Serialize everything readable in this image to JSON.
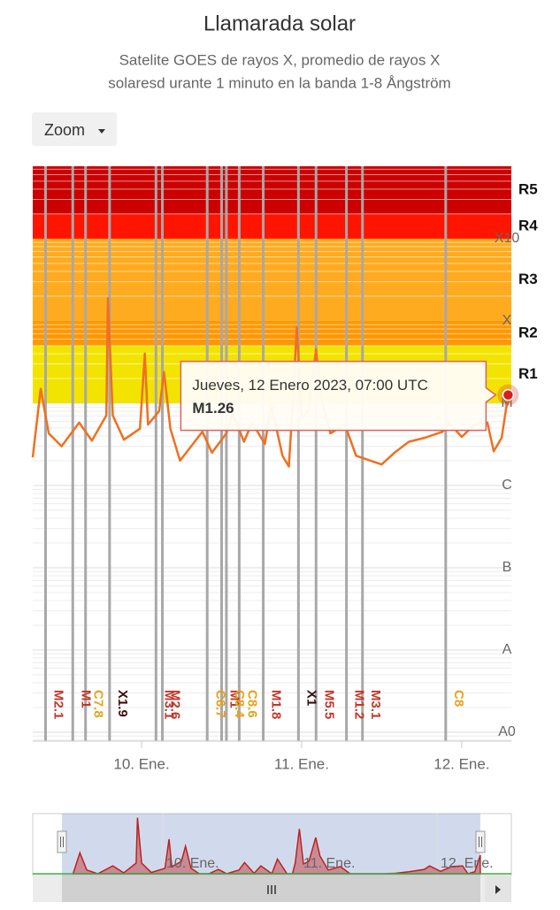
{
  "chart_data": {
    "type": "line",
    "title": "Llamarada solar",
    "subtitle": [
      "Satelite GOES de rayos X, promedio de rayos X",
      "solaresd urante 1 minuto en la banda 1-8 Ångström"
    ],
    "zoom_button": "Zoom",
    "log_scale": true,
    "grid": true,
    "color": "#f07020",
    "xlim": [
      9.32,
      12.31
    ],
    "xticks": [
      {
        "value": 10,
        "label": "10. Ene."
      },
      {
        "value": 11,
        "label": "11. Ene."
      },
      {
        "value": 12,
        "label": "12. Ene."
      }
    ],
    "ylim": [
      7.8e-10,
      0.0076
    ],
    "yticks": [
      {
        "value": 1e-09,
        "label": "A0"
      },
      {
        "value": 1e-08,
        "label": "A"
      },
      {
        "value": 1e-07,
        "label": "B"
      },
      {
        "value": 1e-06,
        "label": "C"
      },
      {
        "value": 1e-05,
        "label": "M"
      },
      {
        "value": 0.0001,
        "label": "X"
      },
      {
        "value": 0.001,
        "label": "X10"
      }
    ],
    "bands": [
      {
        "name": "R1",
        "from": 1e-05,
        "to": 5e-05,
        "color": "#f2e400"
      },
      {
        "name": "R2",
        "from": 5e-05,
        "to": 0.0001,
        "color": "#ff9800"
      },
      {
        "name": "R3",
        "from": 0.0001,
        "to": 0.001,
        "color": "#ffab1f"
      },
      {
        "name": "R4",
        "from": 0.001,
        "to": 0.002,
        "color": "#ff1400"
      },
      {
        "name": "R5",
        "from": 0.002,
        "color": "#cc0000"
      }
    ],
    "x": [
      9.32,
      9.37,
      9.42,
      9.5,
      9.61,
      9.69,
      9.78,
      9.79,
      9.82,
      9.89,
      9.99,
      10.02,
      10.04,
      10.11,
      10.14,
      10.18,
      10.24,
      10.31,
      10.38,
      10.44,
      10.53,
      10.57,
      10.64,
      10.69,
      10.77,
      10.81,
      10.88,
      10.92,
      10.94,
      10.97,
      11.0,
      11.04,
      11.09,
      11.12,
      11.18,
      11.27,
      11.34,
      11.43,
      11.5,
      11.58,
      11.67,
      11.77,
      11.88,
      11.92,
      12.0,
      12.08,
      12.16,
      12.2,
      12.25,
      12.29
    ],
    "values": [
      2.2e-06,
      1.5e-05,
      4.3e-06,
      3e-06,
      5.8e-06,
      3.5e-06,
      7.1e-06,
      0.00019,
      7.1e-06,
      3.6e-06,
      4.9e-06,
      4e-05,
      5.5e-06,
      8e-06,
      2.4e-05,
      4.9e-06,
      2e-06,
      3e-06,
      4.5e-06,
      2.5e-06,
      4.3e-06,
      7.4e-06,
      3.4e-06,
      5.8e-06,
      3.2e-06,
      9.5e-06,
      2.3e-06,
      1.7e-06,
      7.1e-06,
      8.4e-05,
      6.7e-06,
      8e-06,
      4.5e-05,
      1.2e-05,
      4.3e-06,
      5.5e-06,
      2.3e-06,
      2e-06,
      1.8e-06,
      2.5e-06,
      3.4e-06,
      3.8e-06,
      4.5e-06,
      5.8e-06,
      3.9e-06,
      5.5e-06,
      5.8e-06,
      2.6e-06,
      3.8e-06,
      1.26e-05
    ],
    "flares": [
      {
        "x": 9.4,
        "label": "M2.1",
        "color": "#c0392b"
      },
      {
        "x": 9.57,
        "label": "M1",
        "color": "#c0392b"
      },
      {
        "x": 9.65,
        "label": "C7.8",
        "color": "#e8a317"
      },
      {
        "x": 9.8,
        "label": "X1.9",
        "color": "#3a1010"
      },
      {
        "x": 10.09,
        "label": "M3.1",
        "color": "#c0392b"
      },
      {
        "x": 10.13,
        "label": "M2.6",
        "color": "#c0392b"
      },
      {
        "x": 10.41,
        "label": "C6.7",
        "color": "#e8a317"
      },
      {
        "x": 10.5,
        "label": "M1",
        "color": "#c0392b"
      },
      {
        "x": 10.53,
        "label": "C8.4",
        "color": "#e8a317"
      },
      {
        "x": 10.61,
        "label": "C8.6",
        "color": "#e8a317"
      },
      {
        "x": 10.76,
        "label": "M1.8",
        "color": "#c0392b"
      },
      {
        "x": 10.98,
        "label": "X1",
        "color": "#3a1010"
      },
      {
        "x": 11.09,
        "label": "M5.5",
        "color": "#c0392b"
      },
      {
        "x": 11.28,
        "label": "M1.2",
        "color": "#c0392b"
      },
      {
        "x": 11.38,
        "label": "M3.1",
        "color": "#c0392b"
      },
      {
        "x": 11.9,
        "label": "C8",
        "color": "#e8a317"
      }
    ],
    "tooltip": {
      "title": "Jueves, 12 Enero 2023, 07:00 UTC",
      "label": "M1.26"
    }
  }
}
